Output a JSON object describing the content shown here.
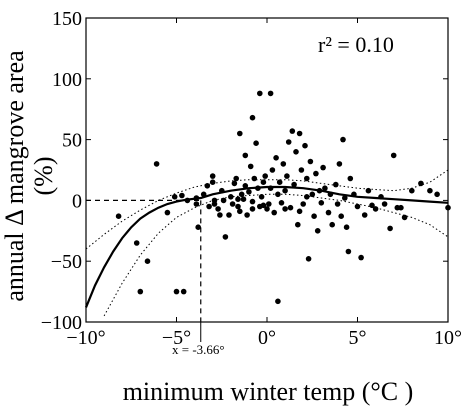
{
  "chart_data": {
    "type": "scatter",
    "xlabel": "minimum winter temp (°C )",
    "ylabel_line1": "annual Δ mangrove area",
    "ylabel_line2": "(%)",
    "annotation": "r² = 0.10",
    "threshold_label": "x = -3.66°",
    "threshold_x": -3.66,
    "xlim": [
      -10,
      10
    ],
    "ylim": [
      -100,
      150
    ],
    "xticks": [
      -10,
      -5,
      0,
      5,
      10
    ],
    "yticks": [
      -100,
      -50,
      0,
      50,
      100,
      150
    ],
    "xtick_labels": [
      "−10°",
      "−5°",
      "0°",
      "5°",
      "10°"
    ],
    "ytick_labels": [
      "−100",
      "−50",
      "0",
      "50",
      "100",
      "150"
    ],
    "grid": false,
    "points": [
      [
        -8.2,
        -13
      ],
      [
        -7.2,
        -35
      ],
      [
        -7.0,
        -75
      ],
      [
        -6.6,
        -50
      ],
      [
        -6.1,
        30
      ],
      [
        -5.5,
        -10
      ],
      [
        -5.0,
        -75
      ],
      [
        -4.6,
        -75
      ],
      [
        -5.1,
        3
      ],
      [
        -4.7,
        4
      ],
      [
        -4.4,
        0
      ],
      [
        -3.9,
        2
      ],
      [
        -3.9,
        -3
      ],
      [
        -3.8,
        -22
      ],
      [
        -3.5,
        5
      ],
      [
        -3.3,
        12
      ],
      [
        -3.0,
        20
      ],
      [
        -3.0,
        15
      ],
      [
        -2.9,
        -3
      ],
      [
        -2.7,
        -7
      ],
      [
        -2.5,
        8
      ],
      [
        -2.4,
        0
      ],
      [
        -2.3,
        -30
      ],
      [
        -2.1,
        -12
      ],
      [
        -2.0,
        3
      ],
      [
        -1.8,
        14
      ],
      [
        -1.7,
        18
      ],
      [
        -1.6,
        -5
      ],
      [
        -1.5,
        -9
      ],
      [
        -1.4,
        5
      ],
      [
        -1.3,
        1
      ],
      [
        -1.2,
        12
      ],
      [
        -1.1,
        -12
      ],
      [
        -1.0,
        7
      ],
      [
        -0.9,
        28
      ],
      [
        -0.8,
        -1
      ],
      [
        -0.7,
        18
      ],
      [
        -0.6,
        47
      ],
      [
        -0.5,
        10
      ],
      [
        -0.4,
        -5
      ],
      [
        -0.3,
        3
      ],
      [
        -0.2,
        15
      ],
      [
        -0.1,
        20
      ],
      [
        -1.2,
        37
      ],
      [
        -0.8,
        68
      ],
      [
        -1.5,
        55
      ],
      [
        -0.4,
        88
      ],
      [
        0.2,
        88
      ],
      [
        0.1,
        -3
      ],
      [
        0.2,
        10
      ],
      [
        0.3,
        25
      ],
      [
        0.4,
        -10
      ],
      [
        0.5,
        35
      ],
      [
        0.6,
        5
      ],
      [
        0.7,
        15
      ],
      [
        0.8,
        -2
      ],
      [
        0.9,
        30
      ],
      [
        1.0,
        8
      ],
      [
        1.1,
        20
      ],
      [
        1.2,
        48
      ],
      [
        1.3,
        -6
      ],
      [
        1.4,
        57
      ],
      [
        1.5,
        13
      ],
      [
        1.6,
        40
      ],
      [
        1.7,
        -20
      ],
      [
        1.8,
        55
      ],
      [
        1.9,
        25
      ],
      [
        2.0,
        -3
      ],
      [
        2.1,
        45
      ],
      [
        2.2,
        18
      ],
      [
        2.3,
        -48
      ],
      [
        2.4,
        32
      ],
      [
        2.5,
        5
      ],
      [
        2.6,
        -13
      ],
      [
        2.7,
        22
      ],
      [
        2.8,
        -25
      ],
      [
        2.9,
        8
      ],
      [
        3.0,
        -2
      ],
      [
        0.6,
        -83
      ],
      [
        1.8,
        -9
      ],
      [
        -0.2,
        -4
      ],
      [
        -2.6,
        -12
      ],
      [
        -1.6,
        1
      ],
      [
        3.2,
        10
      ],
      [
        3.4,
        -10
      ],
      [
        3.5,
        5
      ],
      [
        3.6,
        -20
      ],
      [
        3.8,
        13
      ],
      [
        3.9,
        -3
      ],
      [
        4.0,
        30
      ],
      [
        4.1,
        -13
      ],
      [
        4.2,
        50
      ],
      [
        4.3,
        2
      ],
      [
        4.4,
        -22
      ],
      [
        4.5,
        -42
      ],
      [
        4.6,
        18
      ],
      [
        4.8,
        5
      ],
      [
        5.0,
        -5
      ],
      [
        5.2,
        -47
      ],
      [
        5.4,
        -12
      ],
      [
        5.6,
        8
      ],
      [
        5.8,
        -4
      ],
      [
        6.0,
        -7
      ],
      [
        6.3,
        3
      ],
      [
        6.5,
        -3
      ],
      [
        6.8,
        -23
      ],
      [
        7.0,
        37
      ],
      [
        7.2,
        -6
      ],
      [
        7.4,
        -6
      ],
      [
        7.6,
        -14
      ],
      [
        8.0,
        8
      ],
      [
        8.5,
        14
      ],
      [
        9.0,
        8
      ],
      [
        9.4,
        5
      ],
      [
        10.0,
        -6
      ],
      [
        -2.9,
        0
      ],
      [
        -3.2,
        -5
      ],
      [
        -1.9,
        -3
      ],
      [
        -0.8,
        -7
      ],
      [
        0.0,
        -7
      ],
      [
        1.0,
        -7
      ],
      [
        2.2,
        3
      ],
      [
        3.1,
        27
      ]
    ],
    "fit_curve": [
      [
        -10,
        -88
      ],
      [
        -9.5,
        -70
      ],
      [
        -9,
        -55
      ],
      [
        -8.5,
        -42
      ],
      [
        -8,
        -31
      ],
      [
        -7.5,
        -22
      ],
      [
        -7,
        -15
      ],
      [
        -6.5,
        -10
      ],
      [
        -6,
        -6
      ],
      [
        -5.5,
        -3
      ],
      [
        -5,
        -1
      ],
      [
        -4.5,
        0.5
      ],
      [
        -3.66,
        2
      ],
      [
        -3,
        5
      ],
      [
        -2,
        8
      ],
      [
        -1,
        10
      ],
      [
        0,
        11
      ],
      [
        1,
        11
      ],
      [
        2,
        10
      ],
      [
        3,
        8
      ],
      [
        4,
        5
      ],
      [
        5,
        3
      ],
      [
        6,
        2
      ],
      [
        7,
        1
      ],
      [
        8,
        0
      ],
      [
        9,
        -1
      ],
      [
        10,
        -2
      ]
    ],
    "ci_upper": [
      [
        -10,
        -40
      ],
      [
        -9,
        -28
      ],
      [
        -8,
        -17
      ],
      [
        -7,
        -8
      ],
      [
        -6,
        0
      ],
      [
        -5,
        6
      ],
      [
        -4,
        11
      ],
      [
        -3,
        14
      ],
      [
        -2,
        16
      ],
      [
        -1,
        17
      ],
      [
        0,
        17
      ],
      [
        1,
        17
      ],
      [
        2,
        16
      ],
      [
        3,
        14
      ],
      [
        4,
        12
      ],
      [
        5,
        10
      ],
      [
        6,
        9
      ],
      [
        7,
        8
      ],
      [
        8,
        10
      ],
      [
        9,
        15
      ],
      [
        10,
        25
      ]
    ],
    "ci_lower": [
      [
        -9,
        -95
      ],
      [
        -8,
        -68
      ],
      [
        -7,
        -45
      ],
      [
        -6,
        -27
      ],
      [
        -5,
        -14
      ],
      [
        -4,
        -6
      ],
      [
        -3,
        0
      ],
      [
        -2,
        3
      ],
      [
        -1,
        4
      ],
      [
        0,
        5
      ],
      [
        1,
        5
      ],
      [
        2,
        4
      ],
      [
        3,
        2
      ],
      [
        4,
        0
      ],
      [
        5,
        -3
      ],
      [
        6,
        -6
      ],
      [
        7,
        -10
      ],
      [
        8,
        -14
      ],
      [
        9,
        -20
      ],
      [
        10,
        -30
      ]
    ]
  }
}
